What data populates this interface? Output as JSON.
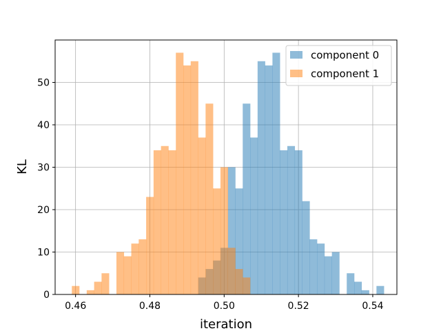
{
  "chart_data": {
    "type": "histogram",
    "xlabel": "iteration",
    "ylabel": "KL",
    "xlim": [
      0.4545,
      0.5465
    ],
    "ylim": [
      0,
      60
    ],
    "xticks": [
      0.46,
      0.48,
      0.5,
      0.52,
      0.54
    ],
    "xtick_labels": [
      "0.46",
      "0.48",
      "0.50",
      "0.52",
      "0.54"
    ],
    "yticks": [
      0,
      10,
      20,
      30,
      40,
      50
    ],
    "ytick_labels": [
      "0",
      "10",
      "20",
      "30",
      "40",
      "50"
    ],
    "grid": true,
    "legend_position": "top-right",
    "series": [
      {
        "name": "component 0",
        "color": "#1f77b4",
        "alpha": 0.5,
        "bin_edges": [
          0.493,
          0.495,
          0.497,
          0.499,
          0.501,
          0.503,
          0.505,
          0.507,
          0.509,
          0.511,
          0.513,
          0.515,
          0.517,
          0.519,
          0.521,
          0.523,
          0.525,
          0.527,
          0.529,
          0.531,
          0.533,
          0.535,
          0.537,
          0.539,
          0.541
        ],
        "values": [
          4,
          6,
          8,
          11,
          30,
          25,
          45,
          37,
          55,
          54,
          57,
          34,
          35,
          34,
          22,
          13,
          12,
          9,
          10,
          0,
          5,
          3,
          1,
          0,
          2
        ]
      },
      {
        "name": "component 1",
        "color": "#ff7f0e",
        "alpha": 0.5,
        "bin_edges": [
          0.459,
          0.461,
          0.463,
          0.465,
          0.467,
          0.469,
          0.471,
          0.473,
          0.475,
          0.477,
          0.479,
          0.481,
          0.483,
          0.485,
          0.487,
          0.489,
          0.491,
          0.493,
          0.495,
          0.497,
          0.499,
          0.501,
          0.503,
          0.505
        ],
        "values": [
          2,
          0,
          1,
          3,
          5,
          0,
          10,
          9,
          12,
          13,
          23,
          34,
          35,
          34,
          57,
          54,
          55,
          37,
          45,
          25,
          30,
          11,
          6,
          4
        ]
      }
    ]
  }
}
